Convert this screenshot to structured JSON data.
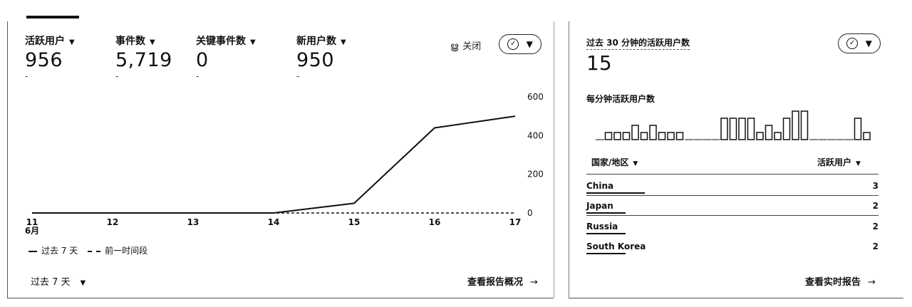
{
  "overview": {
    "metrics": [
      {
        "label": "活跃用户",
        "value": "956",
        "delta": "-"
      },
      {
        "label": "事件数",
        "value": "5,719",
        "delta": "-"
      },
      {
        "label": "关键事件数",
        "value": "0",
        "delta": "-"
      },
      {
        "label": "新用户数",
        "value": "950",
        "delta": "-"
      }
    ],
    "close_label": "关闭",
    "legend_current": "过去 7 天",
    "legend_previous": "前一时间段",
    "range_selector": "过去 7 天",
    "view_report_link": "查看报告概况",
    "x_month_label": "6月"
  },
  "chart_data": [
    {
      "type": "line",
      "x": [
        "11",
        "12",
        "13",
        "14",
        "15",
        "16",
        "17"
      ],
      "series": [
        {
          "name": "过去 7 天",
          "values": [
            0,
            0,
            0,
            0,
            50,
            440,
            500
          ],
          "style": "solid"
        },
        {
          "name": "前一时间段",
          "values": [
            0,
            0,
            0,
            0,
            0,
            0,
            0
          ],
          "style": "dashed"
        }
      ],
      "y_ticks": [
        0,
        200,
        400,
        600
      ],
      "ylim": [
        0,
        600
      ],
      "x_secondary_label": "6月"
    },
    {
      "type": "bar",
      "title": "每分钟活跃用户数",
      "values": [
        0,
        1,
        1,
        1,
        2,
        1,
        2,
        1,
        1,
        1,
        0,
        0,
        0,
        0,
        3,
        3,
        3,
        3,
        1,
        2,
        1,
        3,
        4,
        4,
        0,
        0,
        0,
        0,
        0,
        3,
        1
      ],
      "ylim": [
        0,
        4
      ]
    }
  ],
  "realtime": {
    "title": "过去 30 分钟的活跃用户数",
    "value": "15",
    "subtitle": "每分钟活跃用户数",
    "col_country": "国家/地区",
    "col_users": "活跃用户",
    "rows": [
      {
        "country": "China",
        "users": "3",
        "share": 1.0
      },
      {
        "country": "Japan",
        "users": "2",
        "share": 0.67
      },
      {
        "country": "Russia",
        "users": "2",
        "share": 0.67
      },
      {
        "country": "South Korea",
        "users": "2",
        "share": 0.67
      }
    ],
    "view_realtime_link": "查看实时报告"
  },
  "icons": {
    "caret": "▾",
    "arrow": "→",
    "check": "✓",
    "close_icon": "ൠ"
  }
}
